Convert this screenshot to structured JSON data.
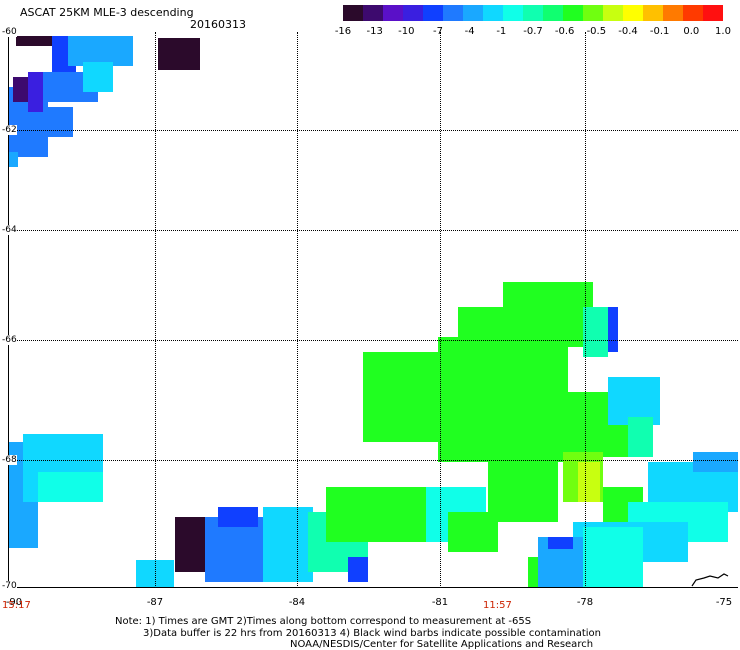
{
  "header": {
    "title": "ASCAT 25KM MLE-3 descending",
    "date": "20160313"
  },
  "colorbar": {
    "labels": [
      "-16",
      "-13",
      "-10",
      "-7",
      "-4",
      "-1",
      "-0.7",
      "-0.6",
      "-0.5",
      "-0.4",
      "-0.1",
      "0.0",
      "1.0"
    ],
    "colors": [
      "#2b0a2b",
      "#3d0a6e",
      "#5a10c8",
      "#3a1fe0",
      "#1040ff",
      "#1f7aff",
      "#1aa8ff",
      "#10d8ff",
      "#10ffe8",
      "#10ffb0",
      "#10ff70",
      "#20ff20",
      "#70ff10",
      "#c8ff10",
      "#ffff00",
      "#ffc000",
      "#ff7a00",
      "#ff3a00",
      "#ff1010"
    ]
  },
  "map": {
    "lat_labels": [
      "-60",
      "-62",
      "-64",
      "-66",
      "-68",
      "-70"
    ],
    "lon_labels": [
      "-90",
      "-87",
      "-84",
      "-81",
      "-78",
      "-75"
    ],
    "time_labels": [
      "15:17",
      "11:57"
    ]
  },
  "footer": {
    "note1": "Note: 1) Times are GMT 2)Times along bottom correspond to measurement at -65S",
    "note2": "3)Data buffer is 22 hrs from 20160313 4) Black wind barbs indicate possible contamination",
    "note3": "NOAA/NESDIS/Center for Satellite Applications and Research"
  }
}
